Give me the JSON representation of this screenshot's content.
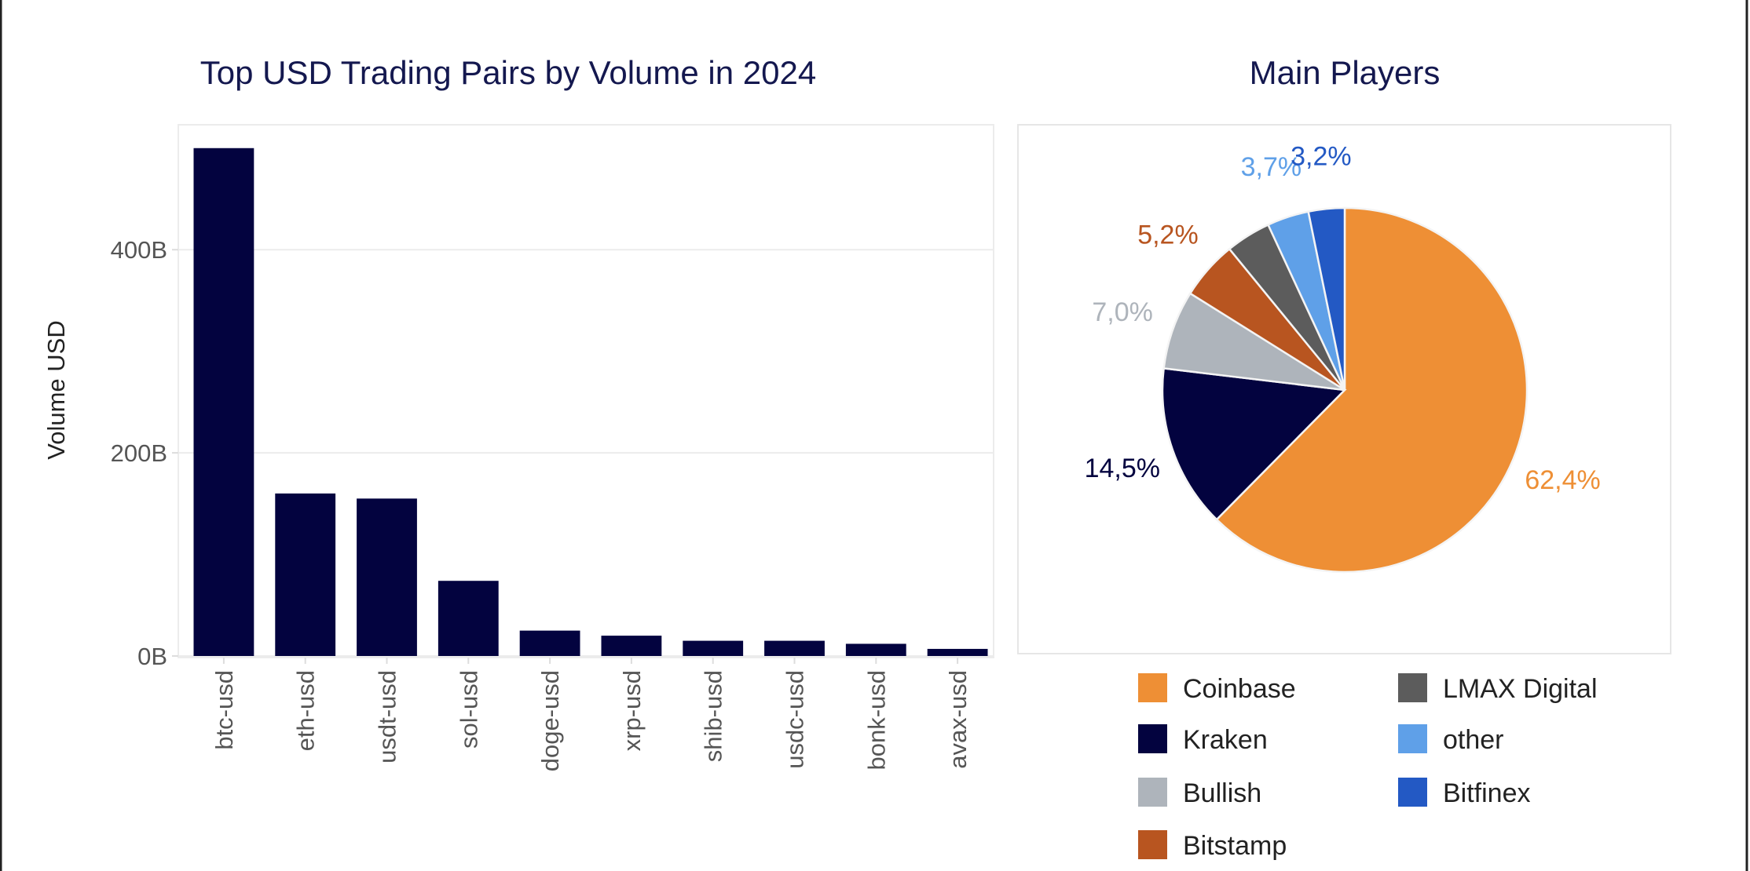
{
  "chart_data": [
    {
      "type": "bar",
      "title": "Top USD Trading Pairs by Volume in 2024",
      "xlabel": "",
      "ylabel": "Volume USD",
      "categories": [
        "btc-usd",
        "eth-usd",
        "usdt-usd",
        "sol-usd",
        "doge-usd",
        "xrp-usd",
        "shib-usd",
        "usdc-usd",
        "bonk-usd",
        "avax-usd"
      ],
      "values": [
        500,
        160,
        155,
        74,
        25,
        20,
        15,
        15,
        12,
        7
      ],
      "unit": "B",
      "yticks": [
        {
          "value": 0,
          "label": "0B"
        },
        {
          "value": 200,
          "label": "200B"
        },
        {
          "value": 400,
          "label": "400B"
        }
      ],
      "ylim": [
        0,
        523
      ],
      "grid": true,
      "color": "#03033f"
    },
    {
      "type": "pie",
      "title": "Main Players",
      "legend_position": "bottom",
      "slices": [
        {
          "name": "Coinbase",
          "value": 62.4,
          "label": "62,4%",
          "color": "#ee8f35"
        },
        {
          "name": "Kraken",
          "value": 14.5,
          "label": "14,5%",
          "color": "#03033f"
        },
        {
          "name": "Bullish",
          "value": 7.0,
          "label": "7,0%",
          "color": "#aeb4bb"
        },
        {
          "name": "Bitstamp",
          "value": 5.2,
          "label": "5,2%",
          "color": "#b85520"
        },
        {
          "name": "LMAX Digital",
          "value": 4.0,
          "label": "",
          "color": "#5c5c5c"
        },
        {
          "name": "other",
          "value": 3.7,
          "label": "3,7%",
          "color": "#5fa0e8"
        },
        {
          "name": "Bitfinex",
          "value": 3.2,
          "label": "3,2%",
          "color": "#2359c4"
        }
      ]
    }
  ]
}
